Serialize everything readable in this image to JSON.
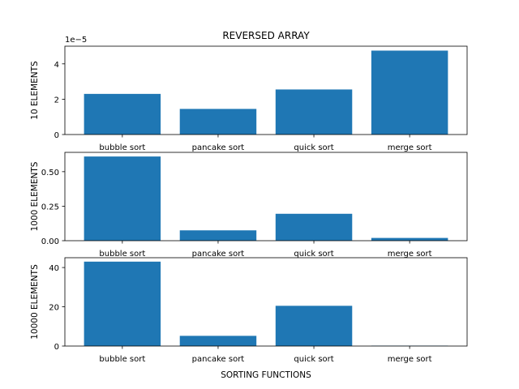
{
  "chart_data": [
    {
      "type": "bar",
      "title": "REVERSED ARRAY",
      "ylabel": "10 ELEMENTS",
      "xlabel": "",
      "offset_text": "1e−5",
      "scale": 1e-05,
      "categories": [
        "bubble sort",
        "pancake sort",
        "quick sort",
        "merge sort"
      ],
      "values": [
        2.3e-05,
        1.45e-05,
        2.55e-05,
        4.75e-05
      ],
      "ylim": [
        0,
        5e-05
      ],
      "yticks": [
        0,
        2e-05,
        4e-05
      ],
      "ytick_labels": [
        "0",
        "2",
        "4"
      ],
      "grid": false,
      "bar_color": "#1f77b4"
    },
    {
      "type": "bar",
      "title": "",
      "ylabel": "1000 ELEMENTS",
      "xlabel": "",
      "categories": [
        "bubble sort",
        "pancake sort",
        "quick sort",
        "merge sort"
      ],
      "values": [
        0.61,
        0.075,
        0.195,
        0.02
      ],
      "ylim": [
        0,
        0.64
      ],
      "yticks": [
        0,
        0.25,
        0.5
      ],
      "ytick_labels": [
        "0.00",
        "0.25",
        "0.50"
      ],
      "grid": false,
      "bar_color": "#1f77b4"
    },
    {
      "type": "bar",
      "title": "",
      "ylabel": "10000 ELEMENTS",
      "xlabel": "SORTING FUNCTIONS",
      "categories": [
        "bubble sort",
        "pancake sort",
        "quick sort",
        "merge sort"
      ],
      "values": [
        43,
        5.2,
        20.5,
        0.2
      ],
      "ylim": [
        0,
        45
      ],
      "yticks": [
        0,
        20,
        40
      ],
      "ytick_labels": [
        "0",
        "20",
        "40"
      ],
      "grid": false,
      "bar_color": "#1f77b4"
    }
  ]
}
